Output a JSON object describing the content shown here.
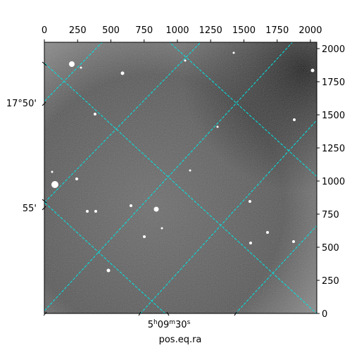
{
  "chart_data": {
    "type": "image",
    "xlim": [
      0,
      2048
    ],
    "ylim": [
      0,
      2048
    ],
    "xticks": [
      0,
      250,
      500,
      750,
      1000,
      1250,
      1500,
      1750,
      2000
    ],
    "yticks": [
      0,
      250,
      500,
      750,
      1000,
      1250,
      1500,
      1750,
      2000
    ],
    "world_y_labels": [
      "17°50'",
      "55'"
    ],
    "world_x_label_parts": [
      "5",
      "h",
      "09",
      "m",
      "30",
      "s"
    ],
    "xlabel": "pos.eq.ra",
    "grid_color": "#00e5e5"
  }
}
